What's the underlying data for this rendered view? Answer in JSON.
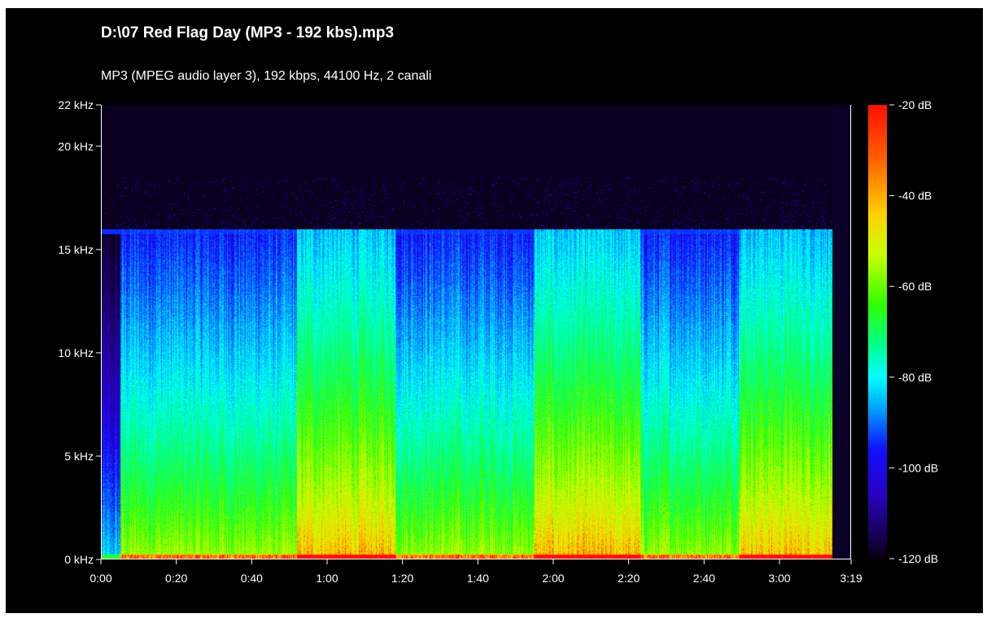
{
  "header": {
    "title": "D:\\07 Red Flag Day (MP3 - 192 kbs).mp3",
    "subtitle": "MP3 (MPEG audio layer 3), 192 kbps, 44100 Hz, 2 canali"
  },
  "chart_data": {
    "type": "heatmap",
    "title": "D:\\07 Red Flag Day (MP3 - 192 kbs).mp3",
    "subtitle": "MP3 (MPEG audio layer 3), 192 kbps, 44100 Hz, 2 canali",
    "x_unit": "seconds",
    "y_unit": "kHz",
    "xlim": [
      0,
      199
    ],
    "ylim": [
      0,
      22
    ],
    "x_ticks": [
      {
        "value": 0,
        "label": "0:00"
      },
      {
        "value": 20,
        "label": "0:20"
      },
      {
        "value": 40,
        "label": "0:40"
      },
      {
        "value": 60,
        "label": "1:00"
      },
      {
        "value": 80,
        "label": "1:20"
      },
      {
        "value": 100,
        "label": "1:40"
      },
      {
        "value": 120,
        "label": "2:00"
      },
      {
        "value": 140,
        "label": "2:20"
      },
      {
        "value": 160,
        "label": "2:40"
      },
      {
        "value": 180,
        "label": "3:00"
      },
      {
        "value": 199,
        "label": "3:19"
      }
    ],
    "y_ticks": [
      {
        "value": 0,
        "label": "0 kHz"
      },
      {
        "value": 5,
        "label": "5 kHz"
      },
      {
        "value": 10,
        "label": "10 kHz"
      },
      {
        "value": 15,
        "label": "15 kHz"
      },
      {
        "value": 20,
        "label": "20 kHz"
      },
      {
        "value": 22,
        "label": "22 kHz"
      }
    ],
    "colorbar": {
      "range_db": [
        -120,
        -20
      ],
      "ticks": [
        {
          "value": -20,
          "label": "-20 dB"
        },
        {
          "value": -40,
          "label": "-40 dB"
        },
        {
          "value": -60,
          "label": "-60 dB"
        },
        {
          "value": -80,
          "label": "-80 dB"
        },
        {
          "value": -100,
          "label": "-100 dB"
        },
        {
          "value": -120,
          "label": "-120 dB"
        }
      ],
      "colors": [
        "#ff1000",
        "#ffd000",
        "#30ff00",
        "#00ffff",
        "#1010ff",
        "#050010"
      ]
    },
    "lowpass_cutoff_khz": 16,
    "audio_end_seconds": 194,
    "sections": [
      {
        "start": 0,
        "end": 5,
        "intensity": "low"
      },
      {
        "start": 5,
        "end": 12,
        "intensity": "medium"
      },
      {
        "start": 12,
        "end": 52,
        "intensity": "medium"
      },
      {
        "start": 52,
        "end": 78,
        "intensity": "high"
      },
      {
        "start": 78,
        "end": 115,
        "intensity": "medium"
      },
      {
        "start": 115,
        "end": 143,
        "intensity": "high"
      },
      {
        "start": 143,
        "end": 169,
        "intensity": "medium"
      },
      {
        "start": 169,
        "end": 194,
        "intensity": "high"
      }
    ]
  }
}
